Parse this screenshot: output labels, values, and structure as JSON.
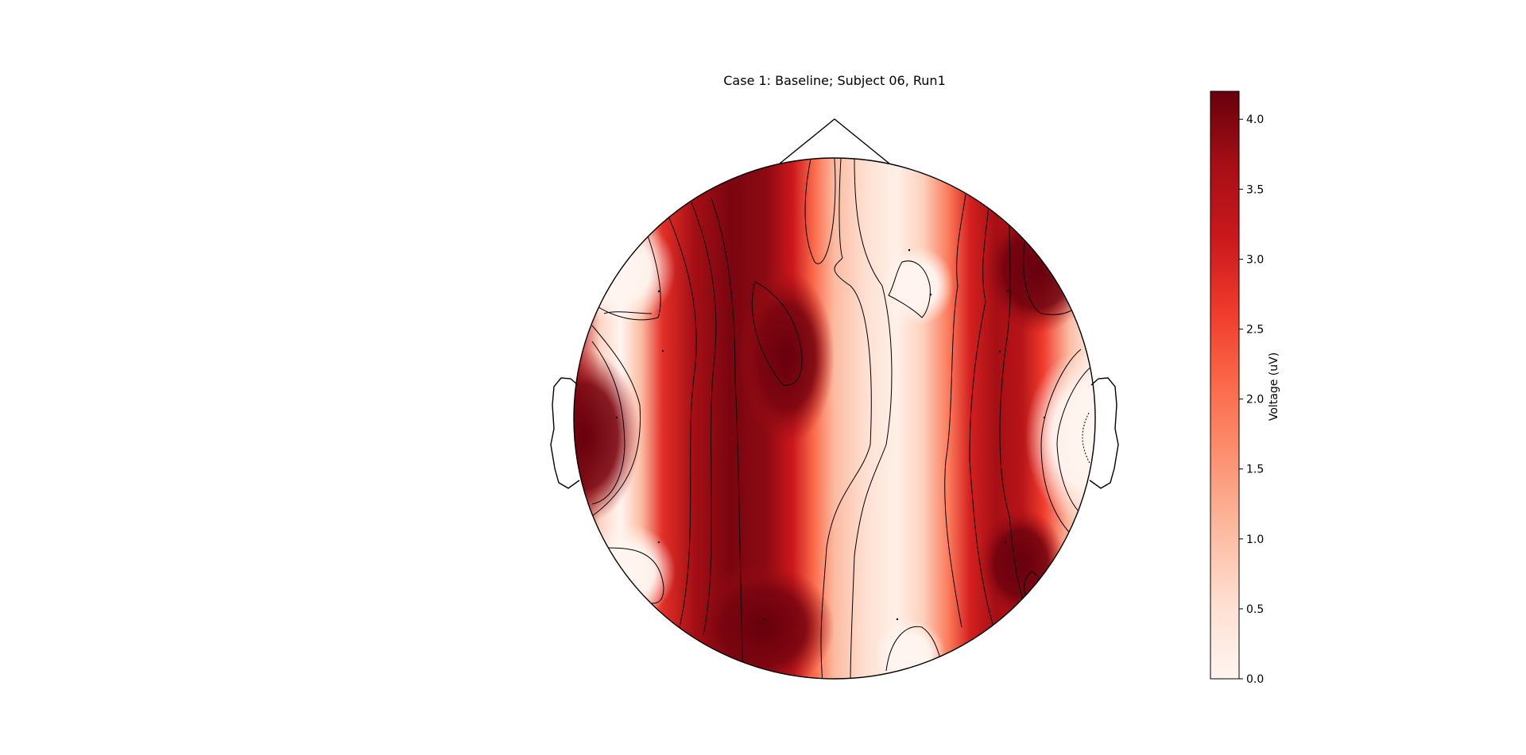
{
  "chart_data": {
    "type": "heatmap",
    "plot_kind": "EEG scalp topographic map",
    "title": "Case 1: Baseline; Subject 06, Run1",
    "colormap": "Reds",
    "colorbar": {
      "label": "Voltage (uV)",
      "range": [
        0.0,
        4.2
      ],
      "ticks": [
        0.0,
        0.5,
        1.0,
        1.5,
        2.0,
        2.5,
        3.0,
        3.5,
        4.0
      ],
      "tick_labels": [
        "0.0",
        "0.5",
        "1.0",
        "1.5",
        "2.0",
        "2.5",
        "3.0",
        "3.5",
        "4.0"
      ],
      "placement": "right"
    },
    "head_outline": {
      "nose": "top",
      "ears": "left and right"
    },
    "regions": [
      {
        "area": "left temporal edge",
        "level": "high",
        "approx_value": 4.2
      },
      {
        "area": "left frontal",
        "level": "low",
        "approx_value": 0.0
      },
      {
        "area": "left occipital",
        "level": "low",
        "approx_value": 0.0
      },
      {
        "area": "left-center band",
        "level": "high",
        "approx_value": 4.0
      },
      {
        "area": "center-right band",
        "level": "low",
        "approx_value": 0.3
      },
      {
        "area": "right frontal",
        "level": "high",
        "approx_value": 4.1
      },
      {
        "area": "right temporal",
        "level": "low",
        "approx_value": 0.0
      },
      {
        "area": "right occipital",
        "level": "high",
        "approx_value": 4.0
      }
    ]
  }
}
